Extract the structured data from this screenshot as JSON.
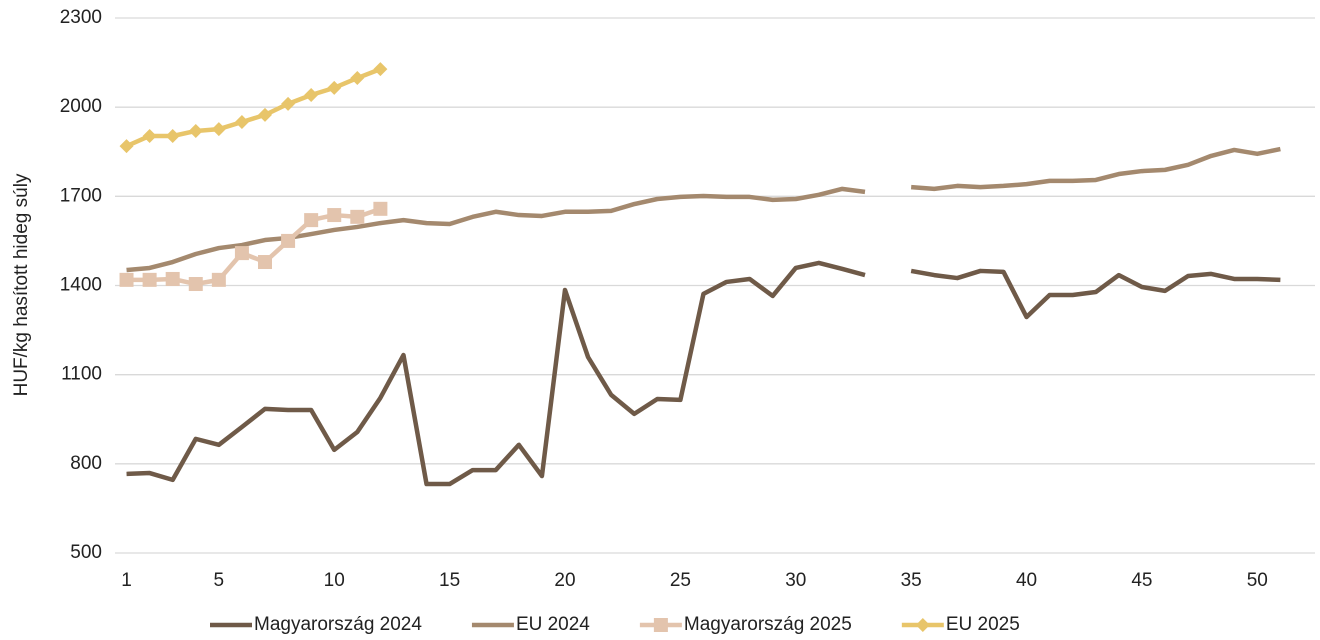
{
  "chart_data": {
    "type": "line",
    "y_label": "HUF/kg hasított hideg súly",
    "x": [
      1,
      2,
      3,
      4,
      5,
      6,
      7,
      8,
      9,
      10,
      11,
      12,
      13,
      14,
      15,
      16,
      17,
      18,
      19,
      20,
      21,
      22,
      23,
      24,
      25,
      26,
      27,
      28,
      29,
      30,
      31,
      32,
      33,
      34,
      35,
      36,
      37,
      38,
      39,
      40,
      41,
      42,
      43,
      44,
      45,
      46,
      47,
      48,
      49,
      50,
      51
    ],
    "xlim": [
      0.5,
      52.5
    ],
    "xticks": [
      1,
      5,
      10,
      15,
      20,
      25,
      30,
      35,
      40,
      45,
      50
    ],
    "ylim": [
      500,
      2300
    ],
    "yticks": [
      500,
      800,
      1100,
      1400,
      1700,
      2000,
      2300
    ],
    "grid": true,
    "legend": "bottom",
    "series": [
      {
        "name": "Magyarország 2024",
        "color": "#6f5a48",
        "marker": "none",
        "values": [
          766,
          769,
          746,
          884,
          864,
          924,
          985,
          981,
          981,
          847,
          907,
          1022,
          1166,
          732,
          732,
          779,
          779,
          864,
          759,
          1385,
          1159,
          1032,
          968,
          1018,
          1015,
          1372,
          1412,
          1422,
          1365,
          1459,
          1476,
          1456,
          1435,
          null,
          1449,
          1435,
          1425,
          1449,
          1446,
          1294,
          1368,
          1368,
          1378,
          1435,
          1395,
          1382,
          1432,
          1439,
          1422,
          1422,
          1419
        ]
      },
      {
        "name": "EU 2024",
        "color": "#a4896e",
        "marker": "none",
        "values": [
          1452,
          1459,
          1479,
          1506,
          1526,
          1536,
          1553,
          1560,
          1573,
          1587,
          1597,
          1610,
          1620,
          1610,
          1607,
          1631,
          1648,
          1637,
          1634,
          1648,
          1648,
          1651,
          1674,
          1691,
          1698,
          1701,
          1698,
          1698,
          1688,
          1691,
          1705,
          1725,
          1715,
          null,
          1731,
          1725,
          1735,
          1731,
          1735,
          1741,
          1752,
          1752,
          1755,
          1775,
          1785,
          1789,
          1806,
          1836,
          1856,
          1843,
          1859
        ]
      },
      {
        "name": "Magyarország 2025",
        "color": "#e3c4ad",
        "marker": "square",
        "values": [
          1419,
          1419,
          1422,
          1405,
          1419,
          1509,
          1479,
          1550,
          1620,
          1637,
          1631,
          1658,
          null,
          null,
          null,
          null,
          null,
          null,
          null,
          null,
          null,
          null,
          null,
          null,
          null,
          null,
          null,
          null,
          null,
          null,
          null,
          null,
          null,
          null,
          null,
          null,
          null,
          null,
          null,
          null,
          null,
          null,
          null,
          null,
          null,
          null,
          null,
          null,
          null,
          null,
          null
        ]
      },
      {
        "name": "EU 2025",
        "color": "#e8c56a",
        "marker": "diamond",
        "values": [
          1869,
          1903,
          1903,
          1920,
          1926,
          1950,
          1974,
          2011,
          2041,
          2065,
          2098,
          2128,
          null,
          null,
          null,
          null,
          null,
          null,
          null,
          null,
          null,
          null,
          null,
          null,
          null,
          null,
          null,
          null,
          null,
          null,
          null,
          null,
          null,
          null,
          null,
          null,
          null,
          null,
          null,
          null,
          null,
          null,
          null,
          null,
          null,
          null,
          null,
          null,
          null,
          null,
          null
        ]
      }
    ]
  }
}
